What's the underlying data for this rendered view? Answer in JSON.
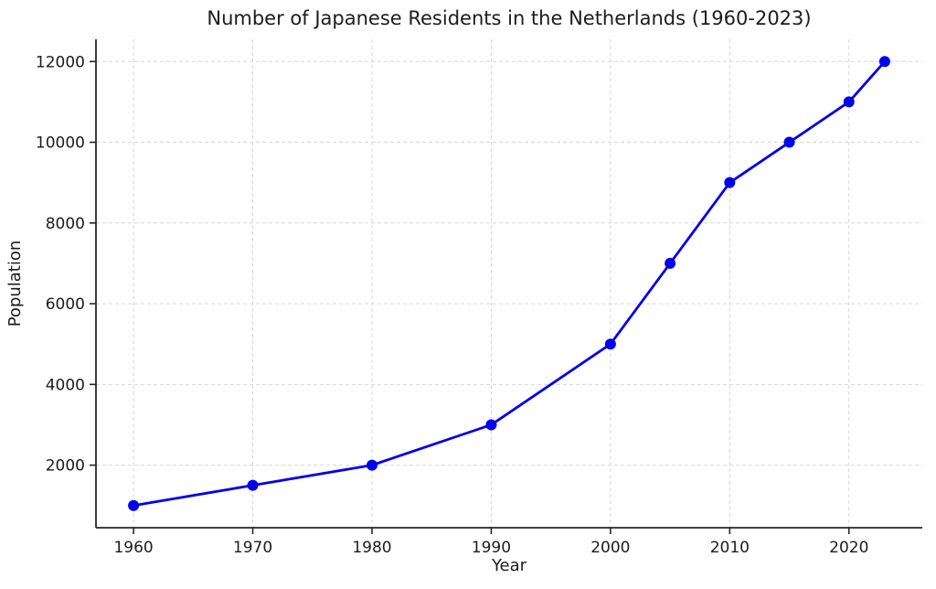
{
  "chart_data": {
    "type": "line",
    "title": "Number of Japanese Residents in the Netherlands (1960-2023)",
    "xlabel": "Year",
    "ylabel": "Population",
    "x": [
      1960,
      1970,
      1980,
      1990,
      2000,
      2005,
      2010,
      2015,
      2020,
      2023
    ],
    "y": [
      1000,
      1500,
      2000,
      3000,
      5000,
      7000,
      9000,
      10000,
      11000,
      12000
    ],
    "x_ticks": [
      1960,
      1970,
      1980,
      1990,
      2000,
      2010,
      2020
    ],
    "y_ticks": [
      2000,
      4000,
      6000,
      8000,
      10000,
      12000
    ],
    "xlim": [
      1956.85,
      2026.15
    ],
    "ylim": [
      450,
      12550
    ],
    "line_color": "#0000ee",
    "marker": "circle",
    "marker_color": "#0000ee",
    "grid": "dashed",
    "grid_color": "#d6d6d6",
    "axis_color": "#262626",
    "text_color": "#1c1c1c",
    "background": "#ffffff",
    "legend_position": "none"
  }
}
